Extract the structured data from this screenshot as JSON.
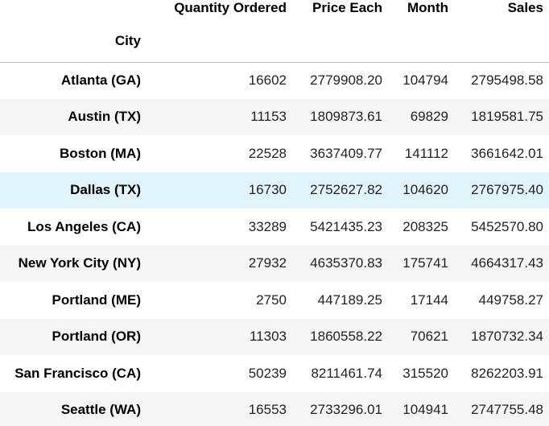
{
  "table": {
    "columns": [
      "Quantity Ordered",
      "Price Each",
      "Month",
      "Sales"
    ],
    "index_name": "City",
    "rows": [
      {
        "city": "Atlanta (GA)",
        "values": [
          "16602",
          "2779908.20",
          "104794",
          "2795498.58"
        ]
      },
      {
        "city": "Austin (TX)",
        "values": [
          "11153",
          "1809873.61",
          "69829",
          "1819581.75"
        ]
      },
      {
        "city": "Boston (MA)",
        "values": [
          "22528",
          "3637409.77",
          "141112",
          "3661642.01"
        ]
      },
      {
        "city": "Dallas (TX)",
        "values": [
          "16730",
          "2752627.82",
          "104620",
          "2767975.40"
        ]
      },
      {
        "city": "Los Angeles (CA)",
        "values": [
          "33289",
          "5421435.23",
          "208325",
          "5452570.80"
        ]
      },
      {
        "city": "New York City (NY)",
        "values": [
          "27932",
          "4635370.83",
          "175741",
          "4664317.43"
        ]
      },
      {
        "city": "Portland (ME)",
        "values": [
          "2750",
          "447189.25",
          "17144",
          "449758.27"
        ]
      },
      {
        "city": "Portland (OR)",
        "values": [
          "11303",
          "1860558.22",
          "70621",
          "1870732.34"
        ]
      },
      {
        "city": "San Francisco (CA)",
        "values": [
          "50239",
          "8211461.74",
          "315520",
          "8262203.91"
        ]
      },
      {
        "city": "Seattle (WA)",
        "values": [
          "16553",
          "2733296.01",
          "104941",
          "2747755.48"
        ]
      }
    ],
    "hovered_row_index": 3
  },
  "colors": {
    "row_stripe": "#f5f5f5",
    "row_hover": "#e1f3fb",
    "header_rule": "#bdbdbd"
  }
}
